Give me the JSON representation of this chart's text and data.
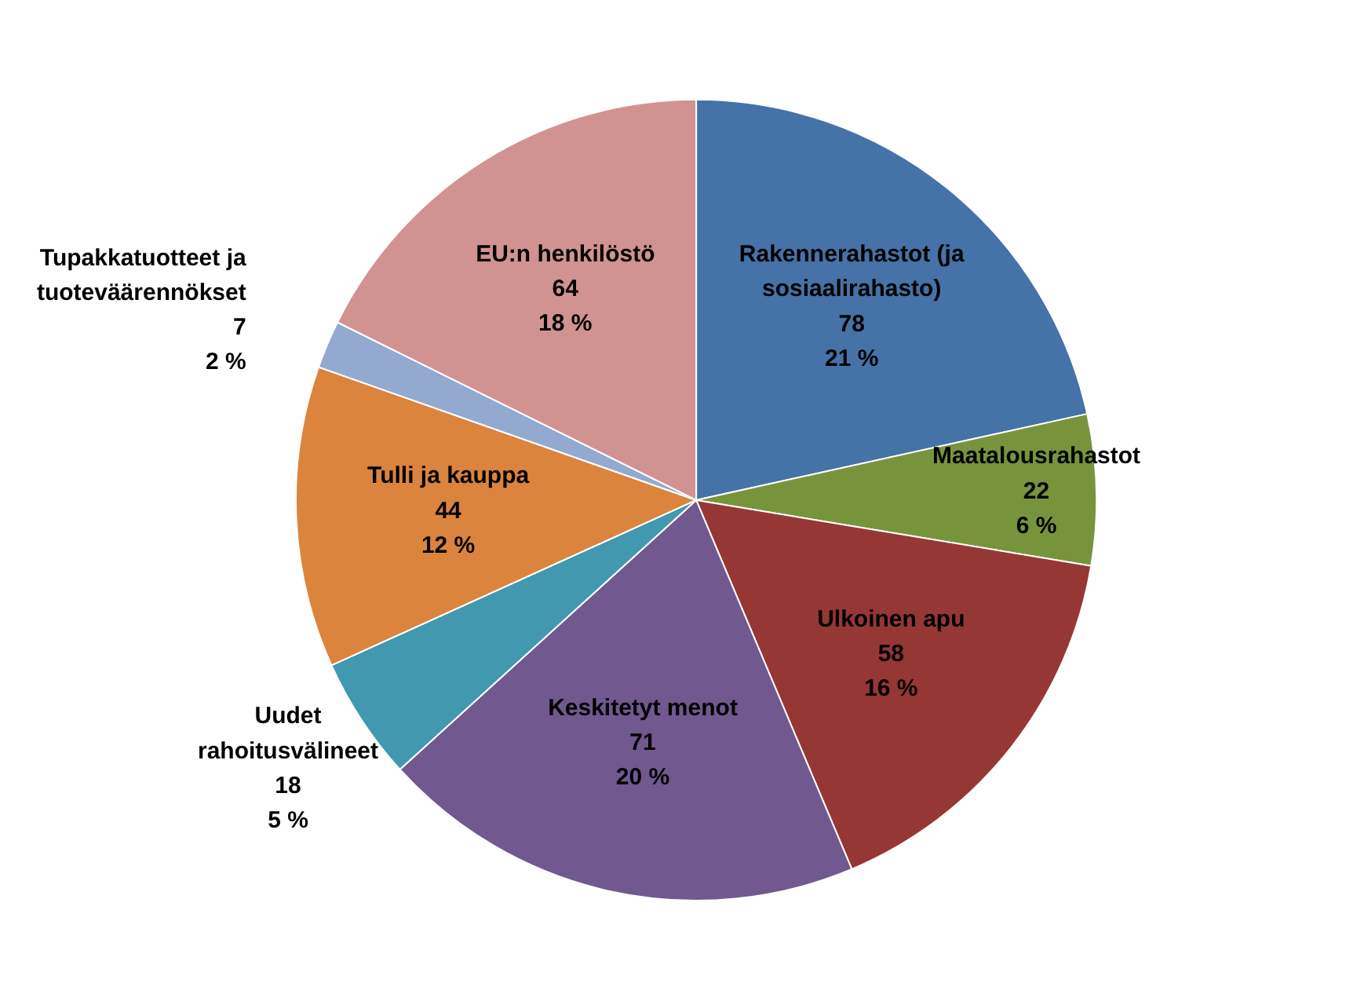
{
  "chart_data": {
    "type": "pie",
    "categories": [
      "Rakennerahastot (ja sosiaalirahasto)",
      "Maatalousrahastot",
      "Ulkoinen apu",
      "Keskitetyt menot",
      "Uudet rahoitusvälineet",
      "Tulli ja kauppa",
      "Tupakkatuotteet ja tuoteväärennökset",
      "EU:n henkilöstö"
    ],
    "values": [
      78,
      22,
      58,
      71,
      18,
      44,
      7,
      64
    ],
    "value_labels": [
      "78\n21 %",
      "22\n6 %",
      "58\n16 %",
      "71\n20 %",
      "18\n5 %",
      "44\n12 %",
      "7\n2 %",
      "64\n18 %"
    ],
    "colors": [
      "#4572a7",
      "#77943c",
      "#953735",
      "#71588f",
      "#4198af",
      "#db843d",
      "#93a9cf",
      "#d19392"
    ]
  }
}
